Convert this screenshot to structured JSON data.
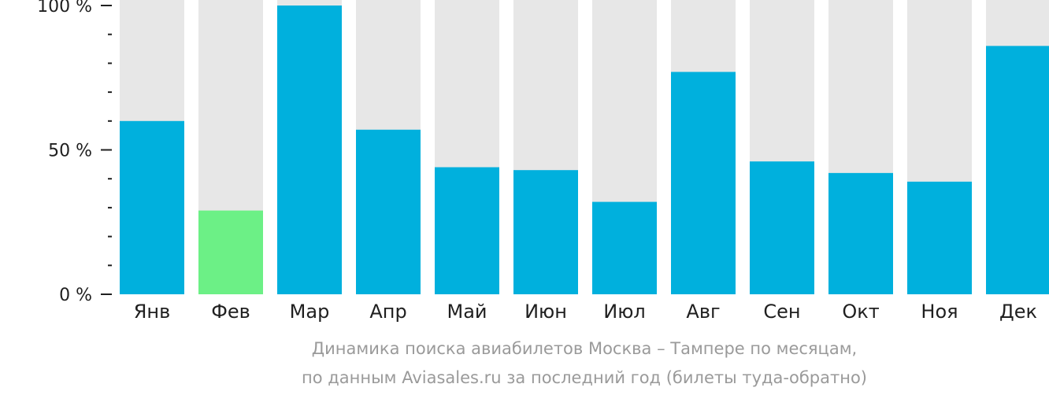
{
  "chart_data": {
    "type": "bar",
    "categories": [
      "Янв",
      "Фев",
      "Мар",
      "Апр",
      "Май",
      "Июн",
      "Июл",
      "Авг",
      "Сен",
      "Окт",
      "Ноя",
      "Дек"
    ],
    "values": [
      60,
      29,
      100,
      57,
      44,
      43,
      32,
      77,
      46,
      42,
      39,
      86
    ],
    "ylim": [
      0,
      100
    ],
    "y_ticks": [
      {
        "value": 100,
        "label": "100 %"
      },
      {
        "value": 50,
        "label": "50 %"
      },
      {
        "value": 0,
        "label": "0 %"
      }
    ],
    "minor_tick_step": 10,
    "highlighted_category": "Фев",
    "colors": {
      "bar": "#00b0dd",
      "highlight_bar": "#6cf086",
      "track": "#e7e7e7",
      "axis": "#1f1f1f"
    },
    "caption": [
      "Динамика поиска авиабилетов Москва – Тампере по месяцам,",
      "по данным Aviasales.ru за последний год (билеты туда-обратно)"
    ]
  }
}
